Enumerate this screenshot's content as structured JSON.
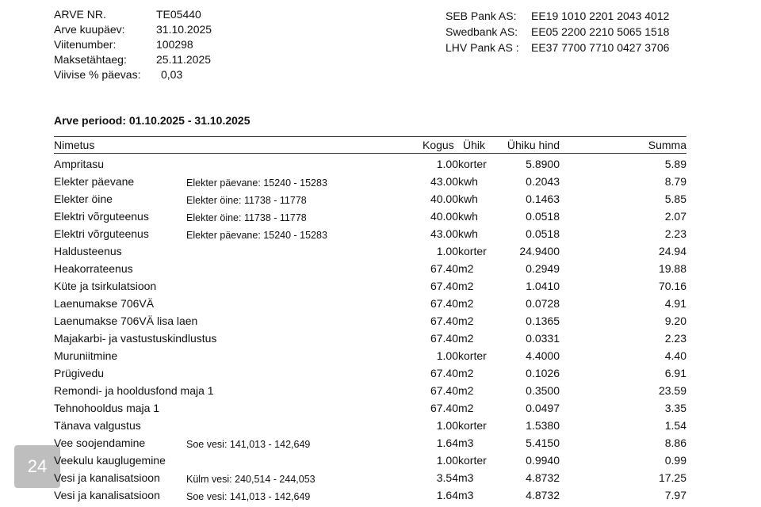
{
  "header": {
    "fields": [
      {
        "label": "ARVE NR.",
        "value": "TE05440"
      },
      {
        "label": "Arve kuupäev:",
        "value": "31.10.2025"
      },
      {
        "label": "Viitenumber:",
        "value": "100298"
      },
      {
        "label": "Maksetähtaeg:",
        "value": "25.11.2025"
      },
      {
        "label": "Viivise % päevas:",
        "value": "0,03"
      }
    ],
    "banks": [
      {
        "label": "SEB Pank AS:",
        "value": "EE19 1010 2201 2043 4012"
      },
      {
        "label": "Swedbank AS:",
        "value": "EE05 2200 2210 5065 1518"
      },
      {
        "label": "LHV Pank AS :",
        "value": "EE37 7700 7710 0427 3706"
      }
    ]
  },
  "period": "Arve periood: 01.10.2025 - 31.10.2025",
  "table": {
    "columns": [
      "Nimetus",
      "Kogus",
      "Ühik",
      "Ühiku hind",
      "Summa"
    ],
    "rows": [
      {
        "name": "Ampritasu",
        "qty": "1.00",
        "unit": "korter",
        "price": "5.8900",
        "sum": "5.89"
      },
      {
        "name": "Elekter päevane",
        "note": "Elekter päevane: 15240 - 15283",
        "qty": "43.00",
        "unit": "kwh",
        "price": "0.2043",
        "sum": "8.79"
      },
      {
        "name": "Elekter öine",
        "note": "Elekter öine: 11738 - 11778",
        "qty": "40.00",
        "unit": "kwh",
        "price": "0.1463",
        "sum": "5.85"
      },
      {
        "name": "Elektri võrguteenus",
        "note": "Elekter öine: 11738 - 11778",
        "qty": "40.00",
        "unit": "kwh",
        "price": "0.0518",
        "sum": "2.07"
      },
      {
        "name": "Elektri võrguteenus",
        "note": "Elekter päevane: 15240 - 15283",
        "qty": "43.00",
        "unit": "kwh",
        "price": "0.0518",
        "sum": "2.23"
      },
      {
        "name": "Haldusteenus",
        "qty": "1.00",
        "unit": "korter",
        "price": "24.9400",
        "sum": "24.94"
      },
      {
        "name": "Heakorrateenus",
        "qty": "67.40",
        "unit": "m2",
        "price": "0.2949",
        "sum": "19.88"
      },
      {
        "name": "Küte ja tsirkulatsioon",
        "qty": "67.40",
        "unit": "m2",
        "price": "1.0410",
        "sum": "70.16"
      },
      {
        "name": "Laenumakse 706VÄ",
        "qty": "67.40",
        "unit": "m2",
        "price": "0.0728",
        "sum": "4.91"
      },
      {
        "name": "Laenumakse 706VÄ lisa laen",
        "qty": "67.40",
        "unit": "m2",
        "price": "0.1365",
        "sum": "9.20"
      },
      {
        "name": "Majakarbi- ja vastustuskindlustus",
        "qty": "67.40",
        "unit": "m2",
        "price": "0.0331",
        "sum": "2.23"
      },
      {
        "name": "Muruniitmine",
        "qty": "1.00",
        "unit": "korter",
        "price": "4.4000",
        "sum": "4.40"
      },
      {
        "name": "Prügivedu",
        "qty": "67.40",
        "unit": "m2",
        "price": "0.1026",
        "sum": "6.91"
      },
      {
        "name": "Remondi- ja hooldusfond maja 1",
        "qty": "67.40",
        "unit": "m2",
        "price": "0.3500",
        "sum": "23.59"
      },
      {
        "name": "Tehnohooldus maja 1",
        "qty": "67.40",
        "unit": "m2",
        "price": "0.0497",
        "sum": "3.35"
      },
      {
        "name": "Tänava valgustus",
        "qty": "1.00",
        "unit": "korter",
        "price": "1.5380",
        "sum": "1.54"
      },
      {
        "name": "Vee soojendamine",
        "note": "Soe vesi: 141,013 - 142,649",
        "qty": "1.64",
        "unit": "m3",
        "price": "5.4150",
        "sum": "8.86"
      },
      {
        "name": "Veekulu kauglugemine",
        "qty": "1.00",
        "unit": "korter",
        "price": "0.9940",
        "sum": "0.99"
      },
      {
        "name": "Vesi ja kanalisatsioon",
        "note": "Külm vesi: 240,514 - 244,053",
        "qty": "3.54",
        "unit": "m3",
        "price": "4.8732",
        "sum": "17.25"
      },
      {
        "name": "Vesi ja kanalisatsioon",
        "note": "Soe vesi: 141,013 - 142,649",
        "qty": "1.64",
        "unit": "m3",
        "price": "4.8732",
        "sum": "7.97"
      }
    ]
  },
  "badge": "24"
}
